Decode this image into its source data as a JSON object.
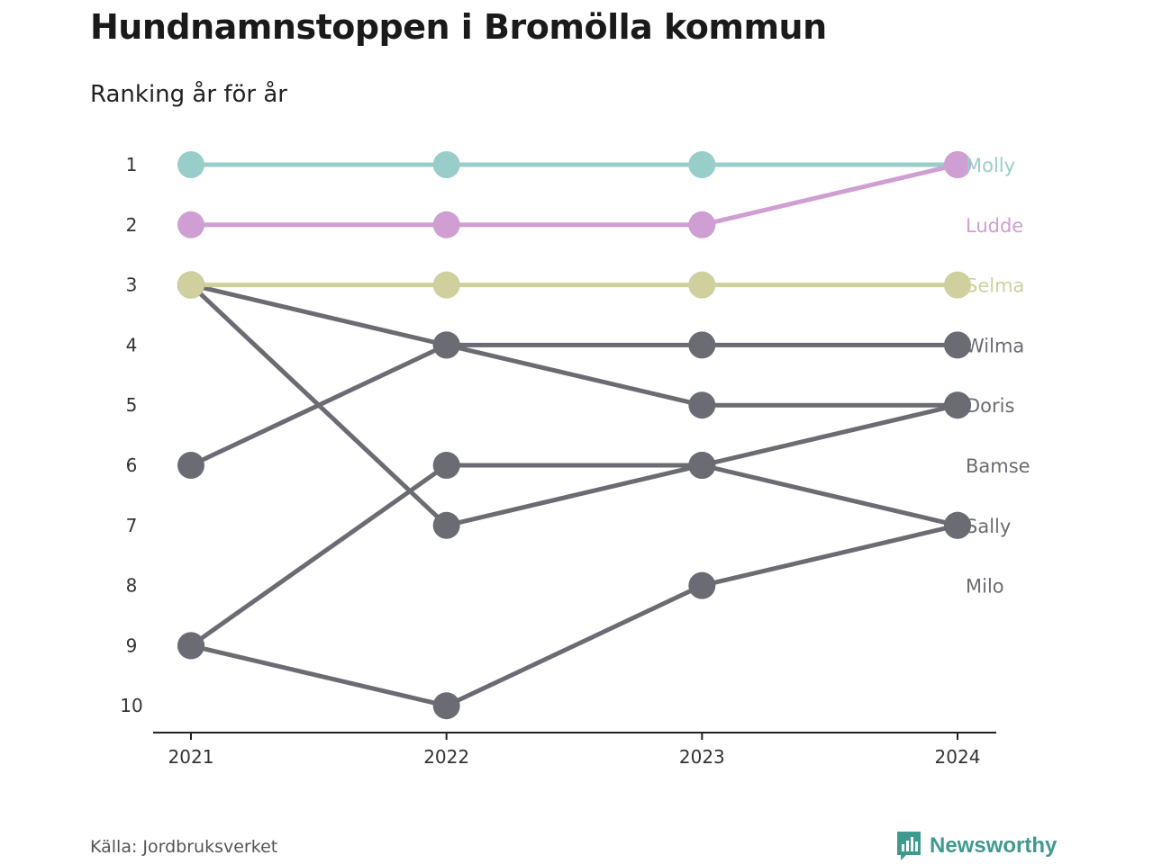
{
  "title": "Hundnamnstoppen i Bromölla kommun",
  "subtitle": "Ranking år för år",
  "source": "Källa: Jordbruksverket",
  "brand": "Newsworthy",
  "colors": {
    "highlight1": "#99cdca",
    "highlight2": "#cf9ed3",
    "highlight3": "#cfd09e",
    "default": "#6b6b73",
    "brand": "#3e9a8e"
  },
  "chart_data": {
    "type": "line",
    "subtype": "bump",
    "x": [
      "2021",
      "2022",
      "2023",
      "2024"
    ],
    "ylim": [
      1,
      10
    ],
    "yticks": [
      1,
      2,
      3,
      4,
      5,
      6,
      7,
      8,
      9,
      10
    ],
    "y_reversed": true,
    "grid": false,
    "legend": "labels at right end",
    "series": [
      {
        "name": "Molly",
        "values": [
          1,
          1,
          1,
          1
        ],
        "color": "#99cdca"
      },
      {
        "name": "Ludde",
        "values": [
          2,
          2,
          2,
          1
        ],
        "color": "#cf9ed3"
      },
      {
        "name": "Selma",
        "values": [
          3,
          3,
          3,
          3
        ],
        "color": "#cfd09e"
      },
      {
        "name": "Wilma",
        "values": [
          6,
          4,
          4,
          4
        ],
        "color": "#6b6b73"
      },
      {
        "name": "Doris",
        "values": [
          3,
          4,
          5,
          5
        ],
        "color": "#6b6b73"
      },
      {
        "name": "Bamse",
        "values": [
          9,
          6,
          6,
          5
        ],
        "color": "#6b6b73"
      },
      {
        "name": "Sally",
        "values": [
          3,
          7,
          6,
          7
        ],
        "color": "#6b6b73"
      },
      {
        "name": "Milo",
        "values": [
          9,
          10,
          8,
          7
        ],
        "color": "#6b6b73"
      }
    ],
    "end_labels": [
      {
        "name": "Molly",
        "rank": 1
      },
      {
        "name": "Ludde",
        "rank": 2
      },
      {
        "name": "Selma",
        "rank": 3
      },
      {
        "name": "Wilma",
        "rank": 4
      },
      {
        "name": "Doris",
        "rank": 5
      },
      {
        "name": "Bamse",
        "rank": 6
      },
      {
        "name": "Sally",
        "rank": 7
      },
      {
        "name": "Milo",
        "rank": 8
      }
    ]
  }
}
